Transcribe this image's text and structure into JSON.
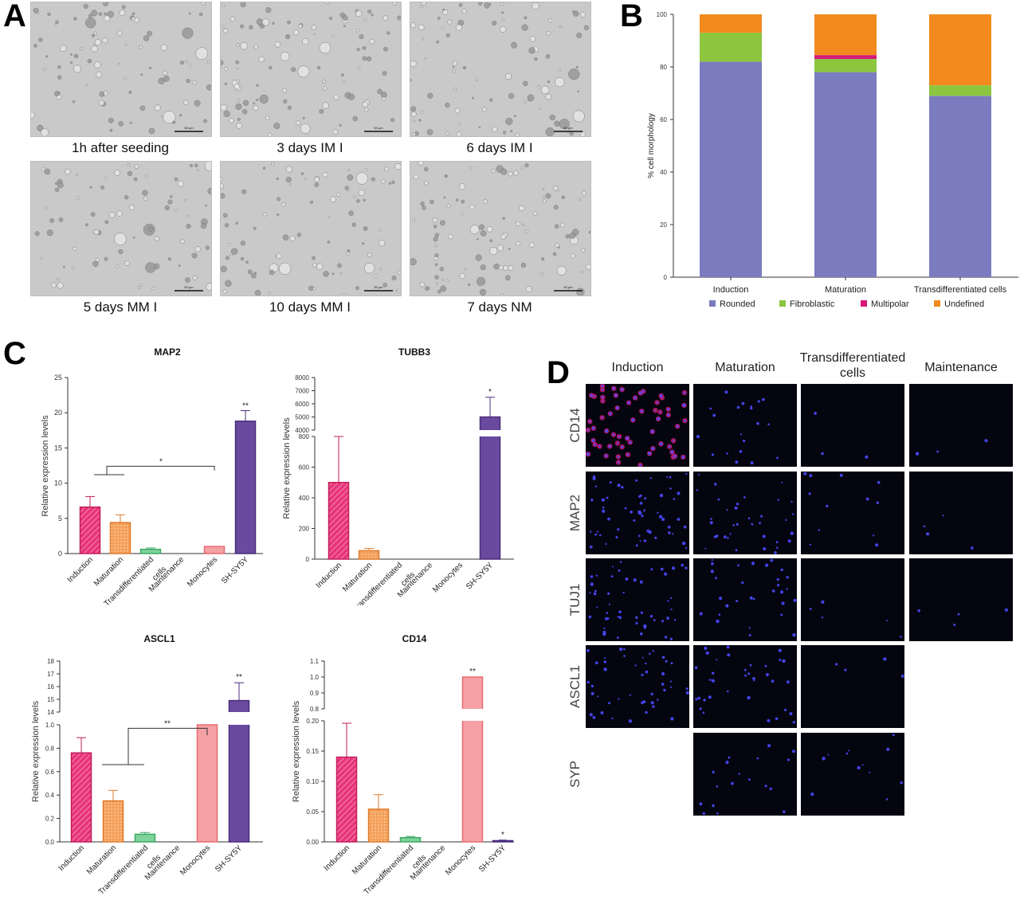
{
  "panel_letters": {
    "a": "A",
    "b": "B",
    "c": "C",
    "d": "D"
  },
  "panel_a": {
    "captions": [
      "1h after seeding",
      "3 days IM I",
      "6 days IM I",
      "5 days MM I",
      "10 days MM I",
      "7 days NM"
    ],
    "scale_bar": "50 μm"
  },
  "panel_d": {
    "columns": [
      "Induction",
      "Maturation",
      "Transdifferentiated cells",
      "Maintenance"
    ],
    "rows": [
      "CD14",
      "MAP2",
      "TUJ1",
      "ASCL1",
      "SYP"
    ]
  },
  "colors": {
    "rounded": "#7b7bbf",
    "fibroblastic": "#8cc63f",
    "multipolar": "#d6197a",
    "undefined": "#f28a1e",
    "induction": "#e8357a",
    "maturation": "#f4a05a",
    "transdiff": "#7dd39a",
    "monocytes": "#f4a0a4",
    "shsy5y": "#6a4a9e"
  },
  "chart_data": [
    {
      "type": "bar",
      "stacked": true,
      "panel": "B",
      "ylabel": "% cell morphology",
      "ylim": [
        0,
        100
      ],
      "yticks": [
        0,
        20,
        40,
        60,
        80,
        100
      ],
      "categories": [
        "Induction",
        "Maturation",
        "Transdifferentiated cells"
      ],
      "series": [
        {
          "name": "Rounded",
          "values": [
            82,
            78,
            69
          ]
        },
        {
          "name": "Fibroblastic",
          "values": [
            11,
            5,
            4
          ]
        },
        {
          "name": "Multipolar",
          "values": [
            0,
            1.5,
            0
          ]
        },
        {
          "name": "Undefined",
          "values": [
            7,
            15.5,
            27
          ]
        }
      ],
      "legend": "bottom"
    },
    {
      "type": "bar",
      "panel": "C",
      "title": "MAP2",
      "ylabel": "Relative expression levels",
      "ylim": [
        0,
        25
      ],
      "yticks": [
        0,
        5,
        10,
        15,
        20,
        25
      ],
      "categories": [
        "Induction",
        "Maturation",
        "Transdifferentiated cells",
        "Maintenance",
        "Monocytes",
        "SH-SY5Y"
      ],
      "values": [
        6.6,
        4.4,
        0.6,
        0,
        1.0,
        18.8
      ],
      "errors": [
        1.5,
        1.1,
        0.2,
        0,
        0,
        1.5
      ],
      "annotations": [
        "*",
        "**"
      ]
    },
    {
      "type": "bar",
      "panel": "C",
      "title": "TUBB3",
      "ylabel": "Relative expression levels",
      "ylim_lower": [
        0,
        800
      ],
      "yticks_lower": [
        0,
        200,
        400,
        600,
        800
      ],
      "ylim_upper": [
        4000,
        8000
      ],
      "yticks_upper": [
        4000,
        5000,
        6000,
        7000,
        8000
      ],
      "categories": [
        "Induction",
        "Maturation",
        "Transdifferentiated cells",
        "Maintenance",
        "Monocytes",
        "SH-SY5Y"
      ],
      "values": [
        500,
        55,
        0,
        0,
        0,
        5000
      ],
      "errors": [
        300,
        15,
        0,
        0,
        0,
        1500
      ],
      "annotations": [
        "*"
      ]
    },
    {
      "type": "bar",
      "panel": "C",
      "title": "ASCL1",
      "ylabel": "Relative expression levels",
      "ylim_lower": [
        0,
        1.0
      ],
      "yticks_lower": [
        0,
        0.2,
        0.4,
        0.6,
        0.8,
        1.0
      ],
      "ylim_upper": [
        14,
        18
      ],
      "yticks_upper": [
        14,
        15,
        16,
        17,
        18
      ],
      "categories": [
        "Induction",
        "Maturation",
        "Transdifferentiated cells",
        "Maintenance",
        "Monocytes",
        "SH-SY5Y"
      ],
      "values": [
        0.76,
        0.35,
        0.065,
        0,
        1.0,
        14.9
      ],
      "errors": [
        0.13,
        0.09,
        0.015,
        0,
        0,
        1.4
      ],
      "annotations": [
        "**",
        "**"
      ]
    },
    {
      "type": "bar",
      "panel": "C",
      "title": "CD14",
      "ylabel": "Relative expression levels",
      "ylim_lower": [
        0,
        0.2
      ],
      "yticks_lower": [
        0.0,
        0.05,
        0.1,
        0.15,
        0.2
      ],
      "ylim_upper": [
        0.8,
        1.1
      ],
      "yticks_upper": [
        0.8,
        0.9,
        1.0,
        1.1
      ],
      "categories": [
        "Induction",
        "Maturation",
        "Transdifferentiated cells",
        "Maintenance",
        "Monocytes",
        "SH-SY5Y"
      ],
      "values": [
        0.14,
        0.054,
        0.007,
        0,
        1.0,
        0.002
      ],
      "errors": [
        0.056,
        0.024,
        0.002,
        0,
        0,
        0
      ],
      "annotations": [
        "**",
        "*"
      ]
    }
  ]
}
